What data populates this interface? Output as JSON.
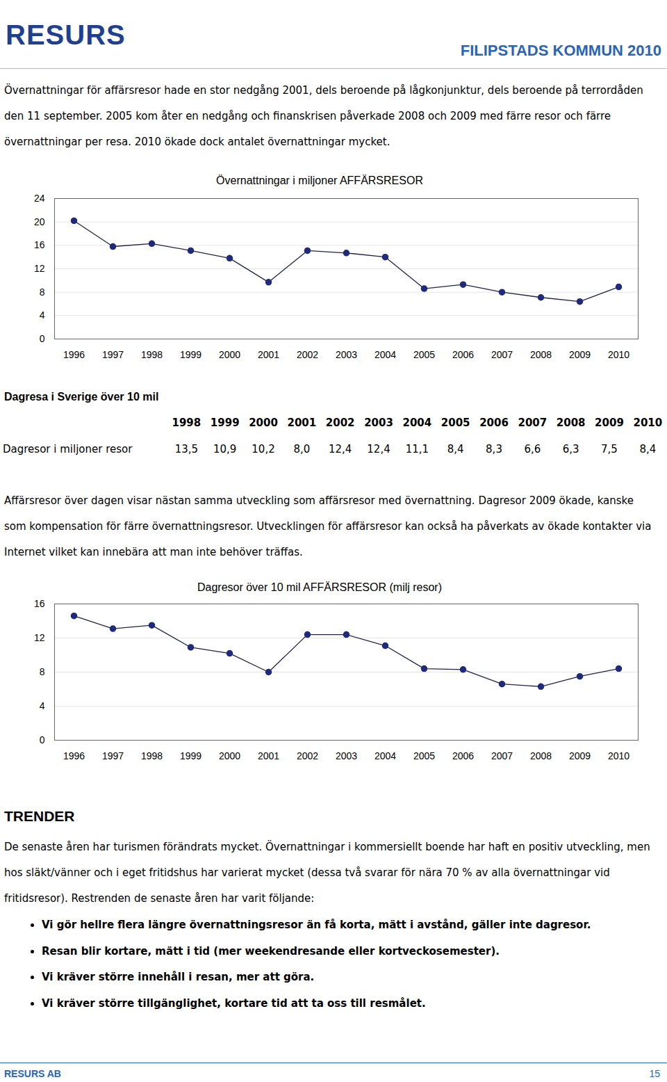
{
  "header": {
    "logo": "RESURS",
    "title": "FILIPSTADS KOMMUN 2010"
  },
  "intro": "Övernattningar för affärsresor hade en stor nedgång 2001, dels beroende på lågkonjunktur, dels beroende på terrordåden den 11 september. 2005 kom åter en nedgång och finanskrisen påverkade 2008 och 2009 med färre resor och färre övernattningar per resa. 2010 ökade dock antalet övernattningar mycket.",
  "chart_data": [
    {
      "type": "line",
      "title": "Övernattningar i miljoner AFFÄRSRESOR",
      "categories": [
        "1996",
        "1997",
        "1998",
        "1999",
        "2000",
        "2001",
        "2002",
        "2003",
        "2004",
        "2005",
        "2006",
        "2007",
        "2008",
        "2009",
        "2010"
      ],
      "values": [
        20.2,
        15.8,
        16.3,
        15.1,
        13.8,
        9.7,
        15.1,
        14.7,
        14.0,
        8.6,
        9.3,
        8.0,
        7.1,
        6.4,
        8.9
      ],
      "color": "#1f2b7a",
      "marker": "circle",
      "ylim": [
        0,
        24
      ],
      "yticks": [
        0,
        4,
        8,
        12,
        16,
        20,
        24
      ],
      "grid": true
    },
    {
      "type": "line",
      "title": "Dagresor över 10 mil AFFÄRSRESOR (milj resor)",
      "categories": [
        "1996",
        "1997",
        "1998",
        "1999",
        "2000",
        "2001",
        "2002",
        "2003",
        "2004",
        "2005",
        "2006",
        "2007",
        "2008",
        "2009",
        "2010"
      ],
      "values": [
        14.6,
        13.1,
        13.5,
        10.9,
        10.2,
        8.0,
        12.4,
        12.4,
        11.1,
        8.4,
        8.3,
        6.6,
        6.3,
        7.5,
        8.4
      ],
      "color": "#1f2b7a",
      "marker": "circle",
      "ylim": [
        0,
        16
      ],
      "yticks": [
        0,
        4,
        8,
        12,
        16
      ],
      "grid": true
    }
  ],
  "table_section": {
    "title": "Dagresa i Sverige över 10 mil",
    "columns": [
      "1998",
      "1999",
      "2000",
      "2001",
      "2002",
      "2003",
      "2004",
      "2005",
      "2006",
      "2007",
      "2008",
      "2009",
      "2010"
    ],
    "rows": [
      {
        "label": "Dagresor i miljoner resor",
        "values": [
          "13,5",
          "10,9",
          "10,2",
          "8,0",
          "12,4",
          "12,4",
          "11,1",
          "8,4",
          "8,3",
          "6,6",
          "6,3",
          "7,5",
          "8,4"
        ]
      }
    ]
  },
  "paragraph2": "Affärsresor över dagen visar nästan samma utveckling som affärsresor med övernattning. Dagresor 2009 ökade, kanske som kompensation för färre övernattningsresor. Utvecklingen för affärsresor kan också ha påverkats av ökade kontakter via Internet vilket kan innebära att man inte behöver träffas.",
  "trends": {
    "title": "TRENDER",
    "text": "De senaste åren har turismen förändrats mycket. Övernattningar i kommersiellt boende har haft en positiv utveckling, men hos släkt/vänner och i eget fritidshus har varierat mycket (dessa två svarar för nära 70 % av alla övernattningar vid fritidsresor). Restrenden de senaste åren har varit följande:",
    "bullets": [
      "Vi gör hellre flera längre övernattningsresor än få korta, mätt i avstånd, gäller inte dagresor.",
      "Resan blir kortare, mätt i tid (mer weekendresande eller kortveckosemester).",
      "Vi kräver större innehåll i resan, mer att göra.",
      "Vi kräver större tillgänglighet, kortare tid att ta oss till resmålet."
    ]
  },
  "footer": {
    "left": "RESURS AB",
    "page": "15"
  }
}
